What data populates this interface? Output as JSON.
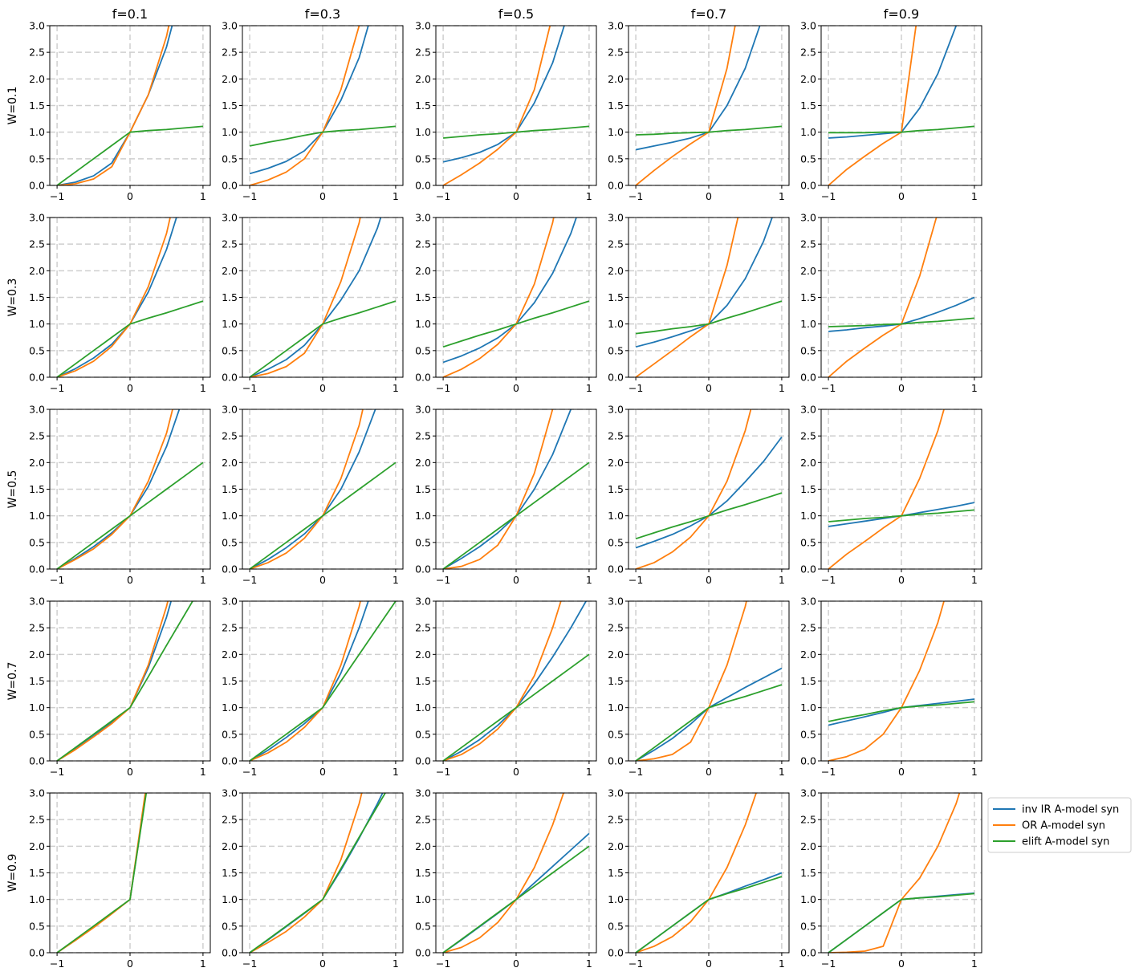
{
  "chart_data": {
    "type": "line",
    "layout": "5x5 small multiples",
    "column_titles": [
      "f=0.1",
      "f=0.3",
      "f=0.5",
      "f=0.7",
      "f=0.9"
    ],
    "row_labels": [
      "W=0.1",
      "W=0.3",
      "W=0.5",
      "W=0.7",
      "W=0.9"
    ],
    "f_values": [
      0.1,
      0.3,
      0.5,
      0.7,
      0.9
    ],
    "W_values": [
      0.1,
      0.3,
      0.5,
      0.7,
      0.9
    ],
    "xlim": [
      -1.1,
      1.1
    ],
    "ylim": [
      0,
      3
    ],
    "x_ticks": [
      -1,
      0,
      1
    ],
    "x_tick_labels": [
      "−1",
      "0",
      "1"
    ],
    "y_ticks": [
      0,
      0.5,
      1,
      1.5,
      2,
      2.5,
      3
    ],
    "y_tick_labels": [
      "0.0",
      "0.5",
      "1.0",
      "1.5",
      "2.0",
      "2.5",
      "3.0"
    ],
    "grid": "dashed, light gray",
    "legend_position": "outside right of bottom-right panel",
    "series": [
      {
        "name": "inv IR A-model syn",
        "color": "#1f77b4"
      },
      {
        "name": "OR A-model syn",
        "color": "#ff7f0e"
      },
      {
        "name": "elift A-model syn",
        "color": "#2ca02c"
      }
    ],
    "x": [
      -1,
      -0.75,
      -0.5,
      -0.25,
      0,
      0.25,
      0.5,
      0.75,
      1
    ],
    "note_values": "y values sampled at x; values above 3 are clipped at the top of each panel",
    "panels": [
      {
        "W": 0.1,
        "f": 0.1,
        "inv_IR": [
          0,
          0.06,
          0.18,
          0.42,
          1,
          1.7,
          2.6,
          3.9,
          5.5
        ],
        "OR": [
          0,
          0.03,
          0.12,
          0.35,
          1,
          1.7,
          2.8,
          4.4,
          6.5
        ],
        "elift": [
          0,
          0.25,
          0.5,
          0.75,
          1,
          1.03,
          1.05,
          1.08,
          1.11
        ]
      },
      {
        "W": 0.1,
        "f": 0.3,
        "inv_IR": [
          0.22,
          0.32,
          0.45,
          0.65,
          1,
          1.6,
          2.4,
          3.6,
          5.2
        ],
        "OR": [
          0,
          0.1,
          0.25,
          0.5,
          1,
          1.8,
          3.0,
          4.7,
          7.0
        ],
        "elift": [
          0.74,
          0.81,
          0.87,
          0.94,
          1,
          1.03,
          1.05,
          1.08,
          1.11
        ]
      },
      {
        "W": 0.1,
        "f": 0.5,
        "inv_IR": [
          0.44,
          0.52,
          0.62,
          0.77,
          1,
          1.55,
          2.3,
          3.4,
          5.0
        ],
        "OR": [
          0,
          0.2,
          0.42,
          0.68,
          1,
          1.8,
          3.2,
          5.0,
          7.5
        ],
        "elift": [
          0.89,
          0.92,
          0.95,
          0.97,
          1,
          1.03,
          1.05,
          1.08,
          1.11
        ]
      },
      {
        "W": 0.1,
        "f": 0.7,
        "inv_IR": [
          0.67,
          0.74,
          0.81,
          0.89,
          1,
          1.5,
          2.2,
          3.2,
          4.6
        ],
        "OR": [
          0,
          0.28,
          0.54,
          0.78,
          1,
          2.2,
          4.0,
          6.5,
          9.0
        ],
        "elift": [
          0.95,
          0.96,
          0.98,
          0.99,
          1,
          1.03,
          1.05,
          1.08,
          1.11
        ]
      },
      {
        "W": 0.1,
        "f": 0.9,
        "inv_IR": [
          0.89,
          0.91,
          0.94,
          0.97,
          1,
          1.45,
          2.1,
          3.0,
          4.3
        ],
        "OR": [
          0,
          0.3,
          0.55,
          0.79,
          1,
          3.5,
          6.0,
          8.5,
          11.0
        ],
        "elift": [
          0.99,
          0.99,
          0.99,
          1.0,
          1,
          1.03,
          1.05,
          1.08,
          1.11
        ]
      },
      {
        "W": 0.3,
        "f": 0.1,
        "inv_IR": [
          0,
          0.16,
          0.36,
          0.62,
          1,
          1.6,
          2.4,
          3.5,
          5.0
        ],
        "OR": [
          0,
          0.12,
          0.3,
          0.58,
          1,
          1.7,
          2.7,
          4.2,
          6.2
        ],
        "elift": [
          0,
          0.25,
          0.5,
          0.75,
          1,
          1.11,
          1.21,
          1.32,
          1.43
        ]
      },
      {
        "W": 0.3,
        "f": 0.3,
        "inv_IR": [
          0,
          0.15,
          0.33,
          0.6,
          1,
          1.45,
          2.0,
          2.8,
          3.9
        ],
        "OR": [
          0,
          0.07,
          0.2,
          0.45,
          1,
          1.8,
          2.9,
          4.6,
          6.8
        ],
        "elift": [
          0,
          0.25,
          0.5,
          0.75,
          1,
          1.11,
          1.21,
          1.32,
          1.43
        ]
      },
      {
        "W": 0.3,
        "f": 0.5,
        "inv_IR": [
          0.28,
          0.4,
          0.55,
          0.74,
          1,
          1.4,
          1.95,
          2.7,
          3.7
        ],
        "OR": [
          0,
          0.15,
          0.35,
          0.62,
          1,
          1.75,
          2.9,
          4.6,
          6.9
        ],
        "elift": [
          0.57,
          0.68,
          0.79,
          0.89,
          1,
          1.11,
          1.21,
          1.32,
          1.43
        ]
      },
      {
        "W": 0.3,
        "f": 0.7,
        "inv_IR": [
          0.57,
          0.66,
          0.76,
          0.87,
          1,
          1.35,
          1.85,
          2.55,
          3.5
        ],
        "OR": [
          0,
          0.25,
          0.5,
          0.76,
          1,
          2.1,
          3.6,
          5.8,
          8.5
        ],
        "elift": [
          0.82,
          0.86,
          0.91,
          0.95,
          1,
          1.11,
          1.21,
          1.32,
          1.43
        ]
      },
      {
        "W": 0.3,
        "f": 0.9,
        "inv_IR": [
          0.86,
          0.89,
          0.93,
          0.96,
          1,
          1.1,
          1.22,
          1.35,
          1.5
        ],
        "OR": [
          0,
          0.3,
          0.55,
          0.79,
          1,
          1.9,
          3.1,
          4.6,
          6.5
        ],
        "elift": [
          0.95,
          0.96,
          0.97,
          0.99,
          1,
          1.03,
          1.05,
          1.08,
          1.11
        ]
      },
      {
        "W": 0.5,
        "f": 0.1,
        "inv_IR": [
          0,
          0.2,
          0.42,
          0.68,
          1,
          1.55,
          2.3,
          3.3,
          4.7
        ],
        "OR": [
          0,
          0.18,
          0.38,
          0.65,
          1,
          1.65,
          2.55,
          3.9,
          5.8
        ],
        "elift": [
          0,
          0.25,
          0.5,
          0.75,
          1,
          1.25,
          1.5,
          1.75,
          2.0
        ]
      },
      {
        "W": 0.5,
        "f": 0.3,
        "inv_IR": [
          0,
          0.18,
          0.4,
          0.66,
          1,
          1.5,
          2.2,
          3.1,
          4.4
        ],
        "OR": [
          0,
          0.12,
          0.3,
          0.58,
          1,
          1.7,
          2.7,
          4.2,
          6.2
        ],
        "elift": [
          0,
          0.25,
          0.5,
          0.75,
          1,
          1.25,
          1.5,
          1.75,
          2.0
        ]
      },
      {
        "W": 0.5,
        "f": 0.5,
        "inv_IR": [
          0,
          0.2,
          0.42,
          0.68,
          1,
          1.5,
          2.15,
          3.0,
          4.2
        ],
        "OR": [
          0,
          0.05,
          0.18,
          0.45,
          1,
          1.8,
          3.0,
          4.8,
          7.2
        ],
        "elift": [
          0,
          0.25,
          0.5,
          0.75,
          1,
          1.25,
          1.5,
          1.75,
          2.0
        ]
      },
      {
        "W": 0.5,
        "f": 0.7,
        "inv_IR": [
          0.4,
          0.52,
          0.65,
          0.81,
          1,
          1.28,
          1.64,
          2.02,
          2.48
        ],
        "OR": [
          0,
          0.12,
          0.32,
          0.6,
          1,
          1.65,
          2.6,
          3.9,
          5.6
        ],
        "elift": [
          0.57,
          0.68,
          0.79,
          0.89,
          1,
          1.11,
          1.21,
          1.32,
          1.43
        ]
      },
      {
        "W": 0.5,
        "f": 0.9,
        "inv_IR": [
          0.8,
          0.85,
          0.9,
          0.95,
          1,
          1.06,
          1.12,
          1.18,
          1.25
        ],
        "OR": [
          0,
          0.28,
          0.52,
          0.77,
          1,
          1.7,
          2.6,
          3.8,
          5.3
        ],
        "elift": [
          0.89,
          0.92,
          0.95,
          0.97,
          1,
          1.03,
          1.05,
          1.08,
          1.11
        ]
      },
      {
        "W": 0.7,
        "f": 0.1,
        "inv_IR": [
          0,
          0.23,
          0.47,
          0.72,
          1,
          1.75,
          2.7,
          3.9,
          5.4
        ],
        "OR": [
          0,
          0.21,
          0.45,
          0.7,
          1,
          1.8,
          2.9,
          4.3,
          6.0
        ],
        "elift": [
          0,
          0.25,
          0.5,
          0.75,
          1,
          1.58,
          2.17,
          2.75,
          3.33
        ]
      },
      {
        "W": 0.7,
        "f": 0.3,
        "inv_IR": [
          0,
          0.2,
          0.44,
          0.7,
          1,
          1.65,
          2.5,
          3.5,
          4.8
        ],
        "OR": [
          0,
          0.15,
          0.35,
          0.63,
          1,
          1.8,
          2.9,
          4.4,
          6.3
        ],
        "elift": [
          0,
          0.25,
          0.5,
          0.75,
          1,
          1.5,
          2.0,
          2.5,
          3.0
        ]
      },
      {
        "W": 0.7,
        "f": 0.5,
        "inv_IR": [
          0,
          0.18,
          0.4,
          0.67,
          1,
          1.45,
          1.95,
          2.5,
          3.1
        ],
        "OR": [
          0,
          0.12,
          0.32,
          0.6,
          1,
          1.6,
          2.5,
          3.6,
          5.0
        ],
        "elift": [
          0,
          0.25,
          0.5,
          0.75,
          1,
          1.25,
          1.5,
          1.75,
          2.0
        ]
      },
      {
        "W": 0.7,
        "f": 0.7,
        "inv_IR": [
          0,
          0.2,
          0.42,
          0.69,
          1,
          1.19,
          1.38,
          1.56,
          1.74
        ],
        "OR": [
          0,
          0.04,
          0.12,
          0.35,
          1,
          1.8,
          2.9,
          4.4,
          6.2
        ],
        "elift": [
          0,
          0.25,
          0.5,
          0.75,
          1,
          1.11,
          1.21,
          1.32,
          1.43
        ]
      },
      {
        "W": 0.7,
        "f": 0.9,
        "inv_IR": [
          0.67,
          0.75,
          0.83,
          0.91,
          1,
          1.04,
          1.08,
          1.12,
          1.16
        ],
        "OR": [
          0,
          0.08,
          0.22,
          0.5,
          1,
          1.7,
          2.6,
          3.8,
          5.3
        ],
        "elift": [
          0.74,
          0.81,
          0.87,
          0.94,
          1,
          1.03,
          1.05,
          1.08,
          1.11
        ]
      },
      {
        "W": 0.9,
        "f": 0.1,
        "inv_IR": [
          0,
          0.24,
          0.48,
          0.74,
          1,
          3.3,
          5.6,
          7.9,
          10.2
        ],
        "OR": [
          0,
          0.23,
          0.47,
          0.73,
          1,
          3.4,
          5.8,
          8.2,
          10.6
        ],
        "elift": [
          0,
          0.25,
          0.5,
          0.75,
          1,
          3.25,
          5.5,
          7.75,
          10.0
        ]
      },
      {
        "W": 0.9,
        "f": 0.3,
        "inv_IR": [
          0,
          0.24,
          0.49,
          0.74,
          1,
          1.55,
          2.15,
          2.8,
          3.5
        ],
        "OR": [
          0,
          0.19,
          0.4,
          0.67,
          1,
          1.75,
          2.8,
          4.2,
          6.0
        ],
        "elift": [
          0,
          0.25,
          0.5,
          0.75,
          1,
          1.58,
          2.17,
          2.75,
          3.33
        ]
      },
      {
        "W": 0.9,
        "f": 0.5,
        "inv_IR": [
          0,
          0.24,
          0.49,
          0.74,
          1,
          1.31,
          1.62,
          1.93,
          2.24
        ],
        "OR": [
          0,
          0.1,
          0.28,
          0.57,
          1,
          1.6,
          2.4,
          3.4,
          4.7
        ],
        "elift": [
          0,
          0.25,
          0.5,
          0.75,
          1,
          1.25,
          1.5,
          1.75,
          2.0
        ]
      },
      {
        "W": 0.9,
        "f": 0.7,
        "inv_IR": [
          0,
          0.25,
          0.5,
          0.75,
          1,
          1.12,
          1.25,
          1.37,
          1.5
        ],
        "OR": [
          0,
          0.12,
          0.3,
          0.58,
          1,
          1.6,
          2.4,
          3.4,
          4.6
        ],
        "elift": [
          0,
          0.25,
          0.5,
          0.75,
          1,
          1.11,
          1.21,
          1.32,
          1.43
        ]
      },
      {
        "W": 0.9,
        "f": 0.9,
        "inv_IR": [
          0,
          0.25,
          0.5,
          0.75,
          1,
          1.03,
          1.06,
          1.09,
          1.12
        ],
        "OR": [
          0,
          0.01,
          0.03,
          0.12,
          1,
          1.4,
          2.0,
          2.8,
          3.9
        ],
        "elift": [
          0,
          0.25,
          0.5,
          0.75,
          1,
          1.03,
          1.05,
          1.08,
          1.11
        ]
      }
    ]
  }
}
